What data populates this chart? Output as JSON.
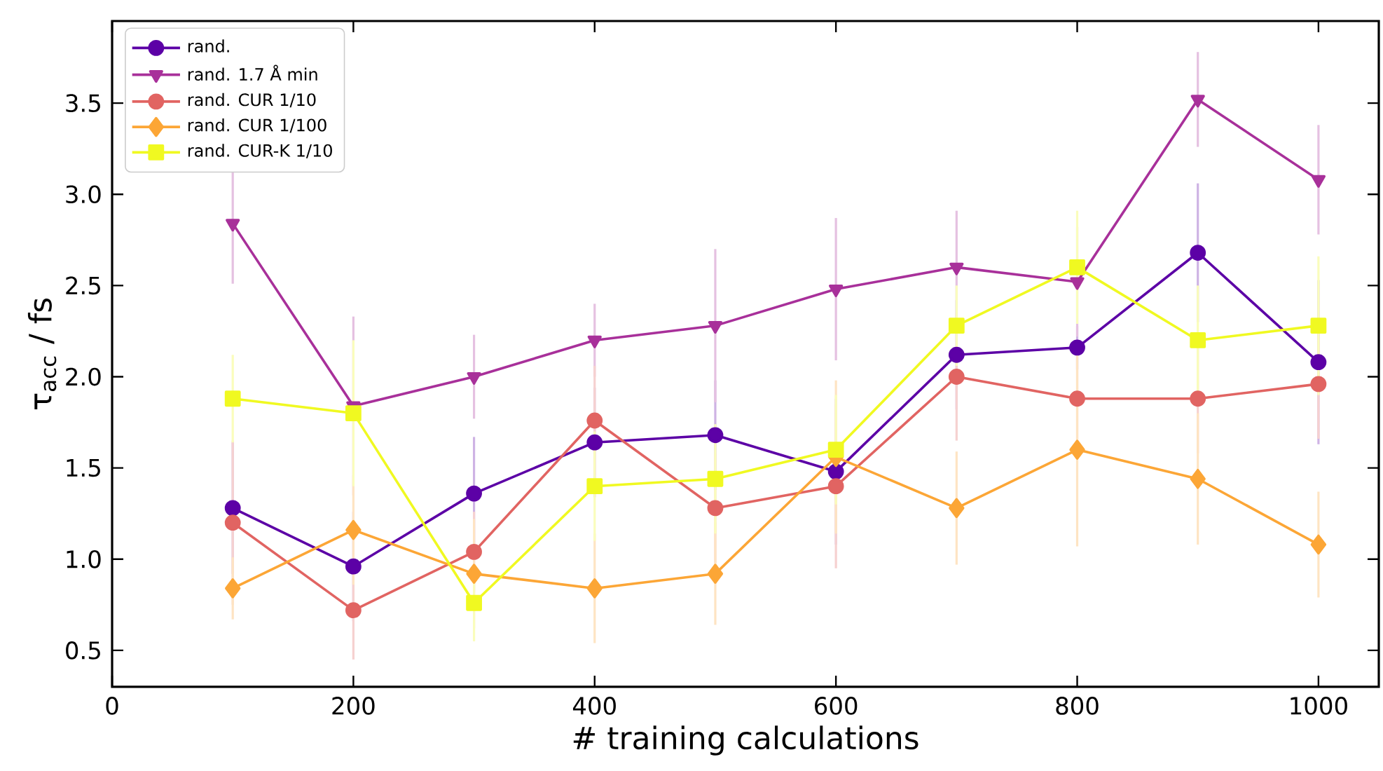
{
  "chart_data": {
    "type": "line",
    "xlabel": "# training calculations",
    "ylabel": "τ$_{acc}$ / fs",
    "x": [
      100,
      200,
      300,
      400,
      500,
      600,
      700,
      800,
      900,
      1000
    ],
    "xlim": [
      0,
      1050
    ],
    "ylim": [
      0.3,
      3.95
    ],
    "xticks": [
      0,
      200,
      400,
      600,
      800,
      1000
    ],
    "yticks": [
      0.5,
      {
        "value": 1,
        "label": "1.0"
      },
      1.5,
      {
        "value": 2,
        "label": "2.0"
      },
      2.5,
      {
        "value": 3,
        "label": "3.0"
      },
      3.5
    ],
    "legend": "top left",
    "series": [
      {
        "name": "rand.",
        "color": "#5c01a6",
        "marker": "circle",
        "values": [
          1.28,
          0.96,
          1.36,
          1.64,
          1.68,
          1.48,
          2.12,
          2.16,
          2.68,
          2.08
        ],
        "errors": [
          0.36,
          0.3,
          0.31,
          0.3,
          0.3,
          0.4,
          0.3,
          0.12,
          0.38,
          0.45
        ]
      },
      {
        "name": "rand. 1.7 Å min",
        "color": "#a8309a",
        "marker": "triangle",
        "values": [
          2.84,
          1.84,
          2.0,
          2.2,
          2.28,
          2.48,
          2.6,
          2.52,
          3.52,
          3.08
        ],
        "errors": [
          0.33,
          0.49,
          0.23,
          0.2,
          0.42,
          0.39,
          0.31,
          0.3,
          0.26,
          0.3
        ]
      },
      {
        "name": "rand. CUR 1/10",
        "color": "#e16462",
        "marker": "circle",
        "values": [
          1.2,
          0.72,
          1.04,
          1.76,
          1.28,
          1.4,
          2.0,
          1.88,
          1.88,
          1.96
        ],
        "errors": [
          0.45,
          0.27,
          0.22,
          0.3,
          0.3,
          0.45,
          0.35,
          0.22,
          0.3,
          0.3
        ]
      },
      {
        "name": "rand. CUR 1/100",
        "color": "#fca636",
        "marker": "diamond",
        "values": [
          0.84,
          1.16,
          0.92,
          0.84,
          0.92,
          1.56,
          1.28,
          1.6,
          1.44,
          1.08
        ],
        "errors": [
          0.17,
          0.3,
          0.3,
          0.3,
          0.28,
          0.42,
          0.31,
          0.53,
          0.36,
          0.29
        ]
      },
      {
        "name": "rand. CUR-K 1/10",
        "color": "#f0f921",
        "marker": "square",
        "values": [
          1.88,
          1.8,
          0.76,
          1.4,
          1.44,
          1.6,
          2.28,
          2.6,
          2.2,
          2.28
        ],
        "errors": [
          0.24,
          0.4,
          0.21,
          0.3,
          0.3,
          0.3,
          0.22,
          0.31,
          0.3,
          0.38
        ]
      }
    ]
  }
}
